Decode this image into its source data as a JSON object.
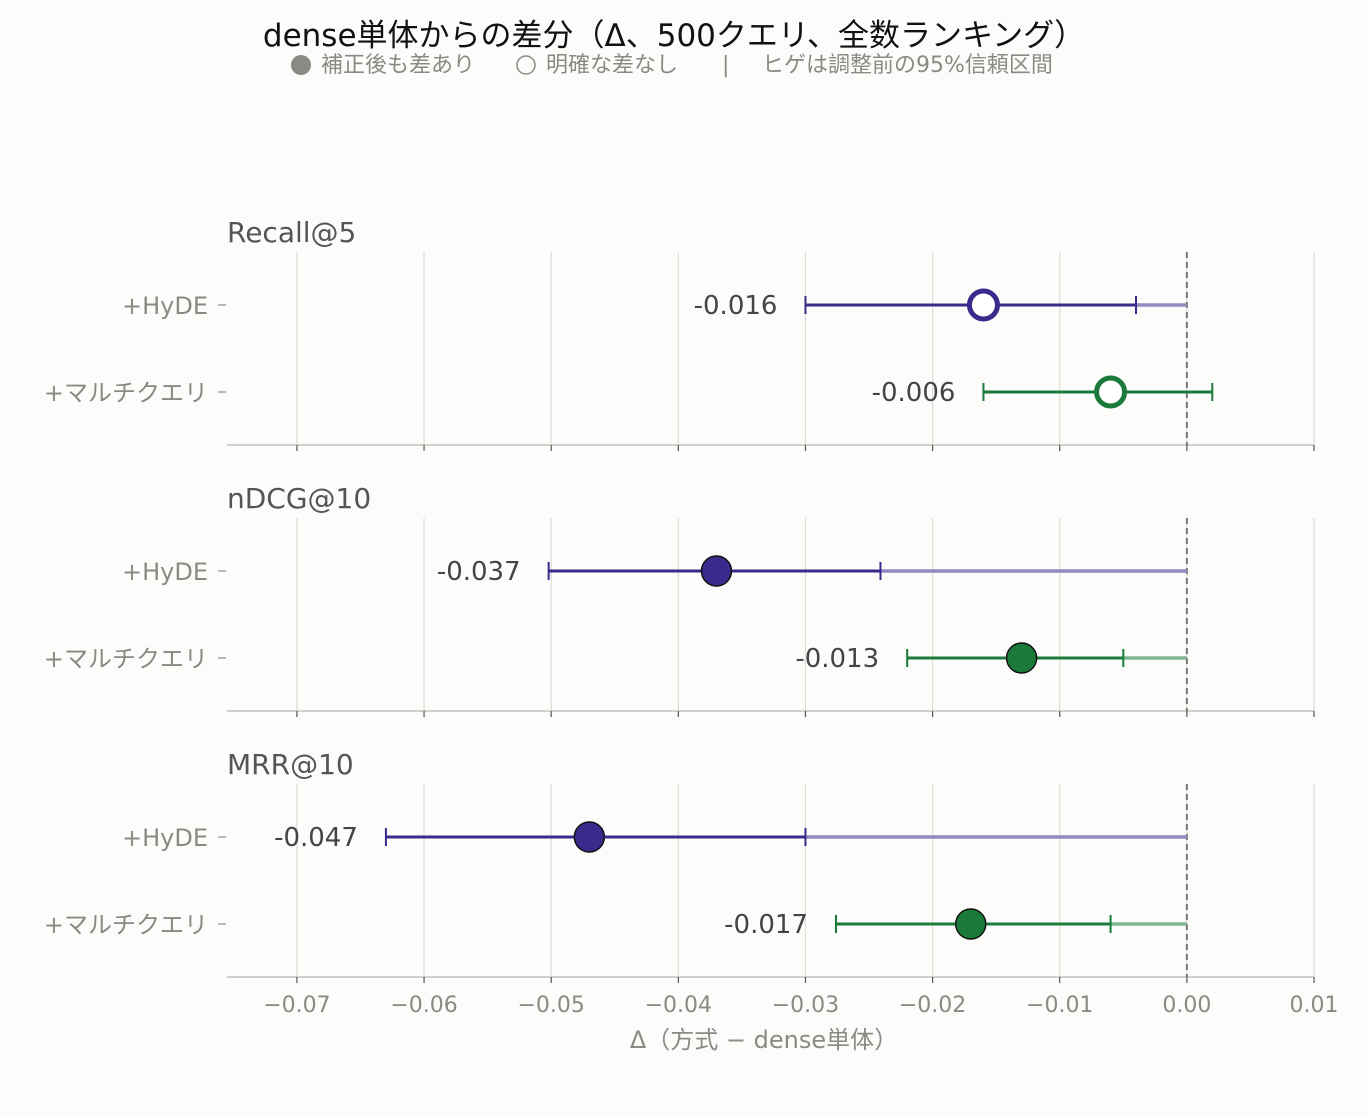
{
  "chart_data": {
    "type": "forest",
    "title": "dense単体からの差分（Δ、500クエリ、全数ランキング）",
    "legend": {
      "significant": "補正後も差あり",
      "not_significant": "明確な差なし",
      "separator": "|",
      "note": "ヒゲは調整前の95%信頼区間"
    },
    "xlabel": "Δ（方式 − dense単体）",
    "xlim": [
      -0.0755,
      0.01
    ],
    "xticks": [
      -0.07,
      -0.06,
      -0.05,
      -0.04,
      -0.03,
      -0.02,
      -0.01,
      0.0,
      0.01
    ],
    "xtick_labels": [
      "−0.07",
      "−0.06",
      "−0.05",
      "−0.04",
      "−0.03",
      "−0.02",
      "−0.01",
      "0.00",
      "0.01"
    ],
    "reference_line": 0.0,
    "grid": true,
    "series_colors": {
      "+HyDE": "#3a2a8c",
      "+マルチクエリ": "#1a7a3a"
    },
    "panels": [
      {
        "title": "Recall@5",
        "rows": [
          {
            "label": "+HyDE",
            "delta": -0.016,
            "ci": [
              -0.03,
              -0.004
            ],
            "ci_tail_to": 0.0,
            "significant": false,
            "value_label": "-0.016"
          },
          {
            "label": "+マルチクエリ",
            "delta": -0.006,
            "ci": [
              -0.016,
              0.002
            ],
            "ci_tail_to": null,
            "significant": false,
            "value_label": "-0.006"
          }
        ]
      },
      {
        "title": "nDCG@10",
        "rows": [
          {
            "label": "+HyDE",
            "delta": -0.037,
            "ci": [
              -0.0502,
              -0.0241
            ],
            "ci_tail_to": 0.0,
            "significant": true,
            "value_label": "-0.037"
          },
          {
            "label": "+マルチクエリ",
            "delta": -0.013,
            "ci": [
              -0.022,
              -0.005
            ],
            "ci_tail_to": 0.0,
            "significant": true,
            "value_label": "-0.013"
          }
        ]
      },
      {
        "title": "MRR@10",
        "rows": [
          {
            "label": "+HyDE",
            "delta": -0.047,
            "ci": [
              -0.063,
              -0.03
            ],
            "ci_tail_to": 0.0,
            "significant": true,
            "value_label": "-0.047"
          },
          {
            "label": "+マルチクエリ",
            "delta": -0.017,
            "ci": [
              -0.0276,
              -0.006
            ],
            "ci_tail_to": 0.0,
            "significant": true,
            "value_label": "-0.017"
          }
        ]
      }
    ]
  }
}
